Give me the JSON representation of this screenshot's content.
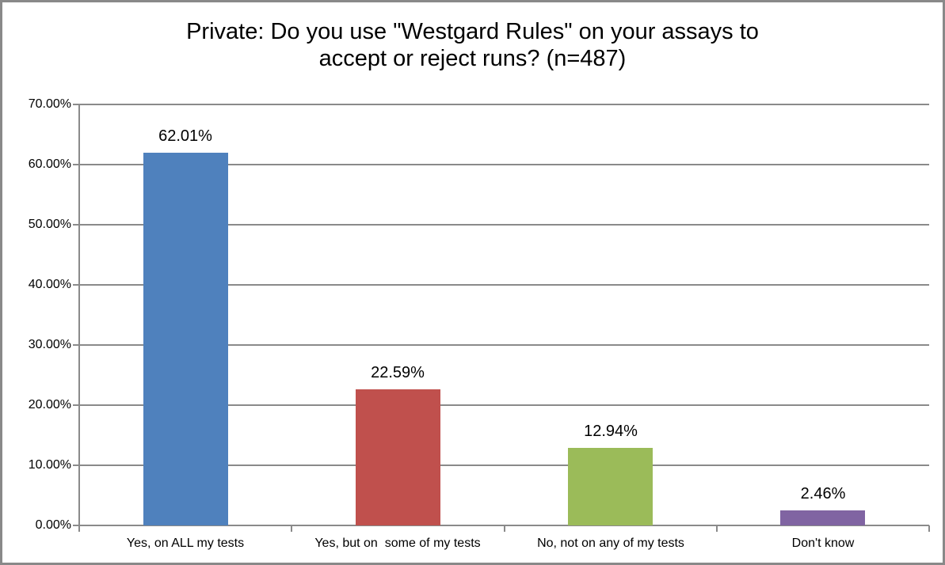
{
  "chart_data": {
    "type": "bar",
    "title": "Private: Do you use \"Westgard Rules\" on your assays to accept or reject runs? (n=487)",
    "title_lines": [
      "Private: Do you use \"Westgard Rules\" on your assays to",
      "accept or reject runs? (n=487)"
    ],
    "categories": [
      "Yes, on ALL my tests",
      "Yes, but on  some of my tests",
      "No, not on any of my tests",
      "Don't know"
    ],
    "values": [
      62.01,
      22.59,
      12.94,
      2.46
    ],
    "data_labels": [
      "62.01%",
      "22.59%",
      "12.94%",
      "2.46%"
    ],
    "bar_colors": [
      "#4F81BD",
      "#C0504D",
      "#9BBB59",
      "#8064A2"
    ],
    "xlabel": "",
    "ylabel": "",
    "ylim": [
      0,
      70
    ],
    "ytick_step": 10,
    "ytick_labels": [
      "0.00%",
      "10.00%",
      "20.00%",
      "30.00%",
      "40.00%",
      "50.00%",
      "60.00%",
      "70.00%"
    ],
    "grid": true,
    "legend": "none",
    "gridline_color": "#8a8a8a",
    "axis_color": "#8a8a8a",
    "background_color": "#ffffff",
    "border_color": "#898989"
  }
}
